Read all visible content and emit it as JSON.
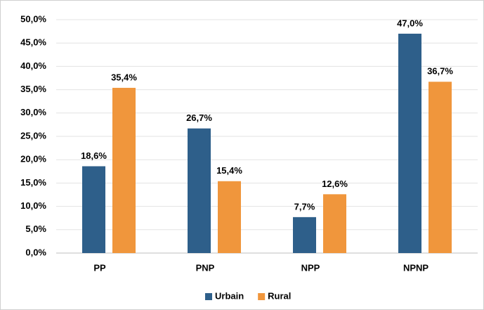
{
  "chart_data": {
    "type": "bar",
    "categories": [
      "PP",
      "PNP",
      "NPP",
      "NPNP"
    ],
    "series": [
      {
        "name": "Urbain",
        "color": "#2e5f8a",
        "values": [
          18.6,
          26.7,
          7.7,
          47.0
        ],
        "value_labels": [
          "18,6%",
          "26,7%",
          "7,7%",
          "47,0%"
        ]
      },
      {
        "name": "Rural",
        "color": "#f0963c",
        "values": [
          35.4,
          15.4,
          12.6,
          36.7
        ],
        "value_labels": [
          "35,4%",
          "15,4%",
          "12,6%",
          "36,7%"
        ]
      }
    ],
    "ylim": [
      0,
      50
    ],
    "yticks": [
      {
        "value": 0,
        "label": "0,0%"
      },
      {
        "value": 5,
        "label": "5,0%"
      },
      {
        "value": 10,
        "label": "10,0%"
      },
      {
        "value": 15,
        "label": "15,0%"
      },
      {
        "value": 20,
        "label": "20,0%"
      },
      {
        "value": 25,
        "label": "25,0%"
      },
      {
        "value": 30,
        "label": "30,0%"
      },
      {
        "value": 35,
        "label": "35,0%"
      },
      {
        "value": 40,
        "label": "40,0%"
      },
      {
        "value": 45,
        "label": "45,0%"
      },
      {
        "value": 50,
        "label": "50,0%"
      }
    ],
    "grid": true,
    "legend": "bottom"
  }
}
